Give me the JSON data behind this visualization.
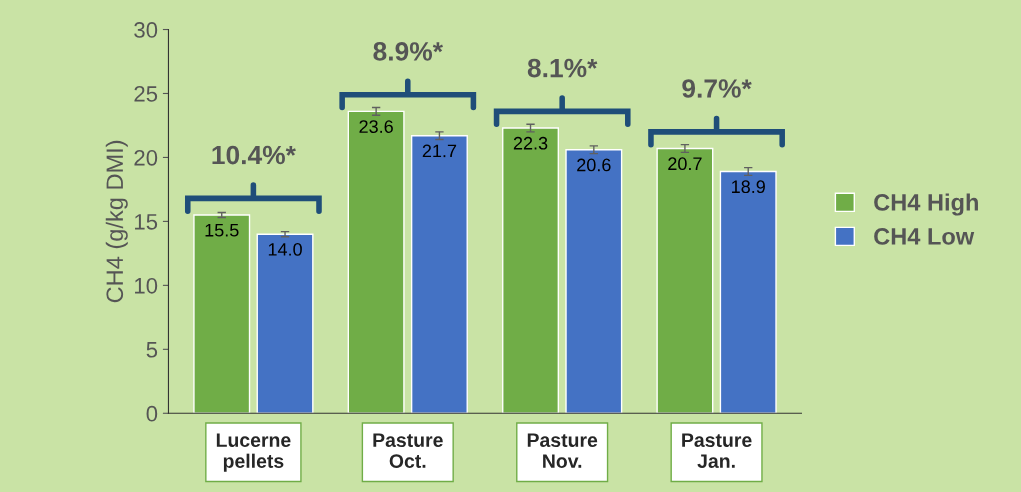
{
  "chart_data": {
    "type": "bar",
    "ylabel": "CH4 (g/kg DMI)",
    "categories": [
      "Lucerne\npellets",
      "Pasture\nOct.",
      "Pasture\nNov.",
      "Pasture\nJan."
    ],
    "series": [
      {
        "name": "CH4 High",
        "color": "#70ad47",
        "values": [
          15.5,
          23.6,
          22.3,
          20.7
        ],
        "value_labels": [
          "15.5",
          "23.6",
          "22.3",
          "20.7"
        ],
        "errors": [
          0.2,
          0.3,
          0.3,
          0.3
        ]
      },
      {
        "name": "CH4 Low",
        "color": "#4472c4",
        "values": [
          14.0,
          21.7,
          20.6,
          18.9
        ],
        "value_labels": [
          "14.0",
          "21.7",
          "20.6",
          "18.9"
        ],
        "errors": [
          0.2,
          0.3,
          0.3,
          0.3
        ]
      }
    ],
    "ylim": [
      0,
      30
    ],
    "yticks": [
      0,
      5,
      10,
      15,
      20,
      25,
      30
    ],
    "legend": "right",
    "grid": false,
    "annotations": [
      "10.4%*",
      "8.9%*",
      "8.1%*",
      "9.7%*"
    ]
  }
}
